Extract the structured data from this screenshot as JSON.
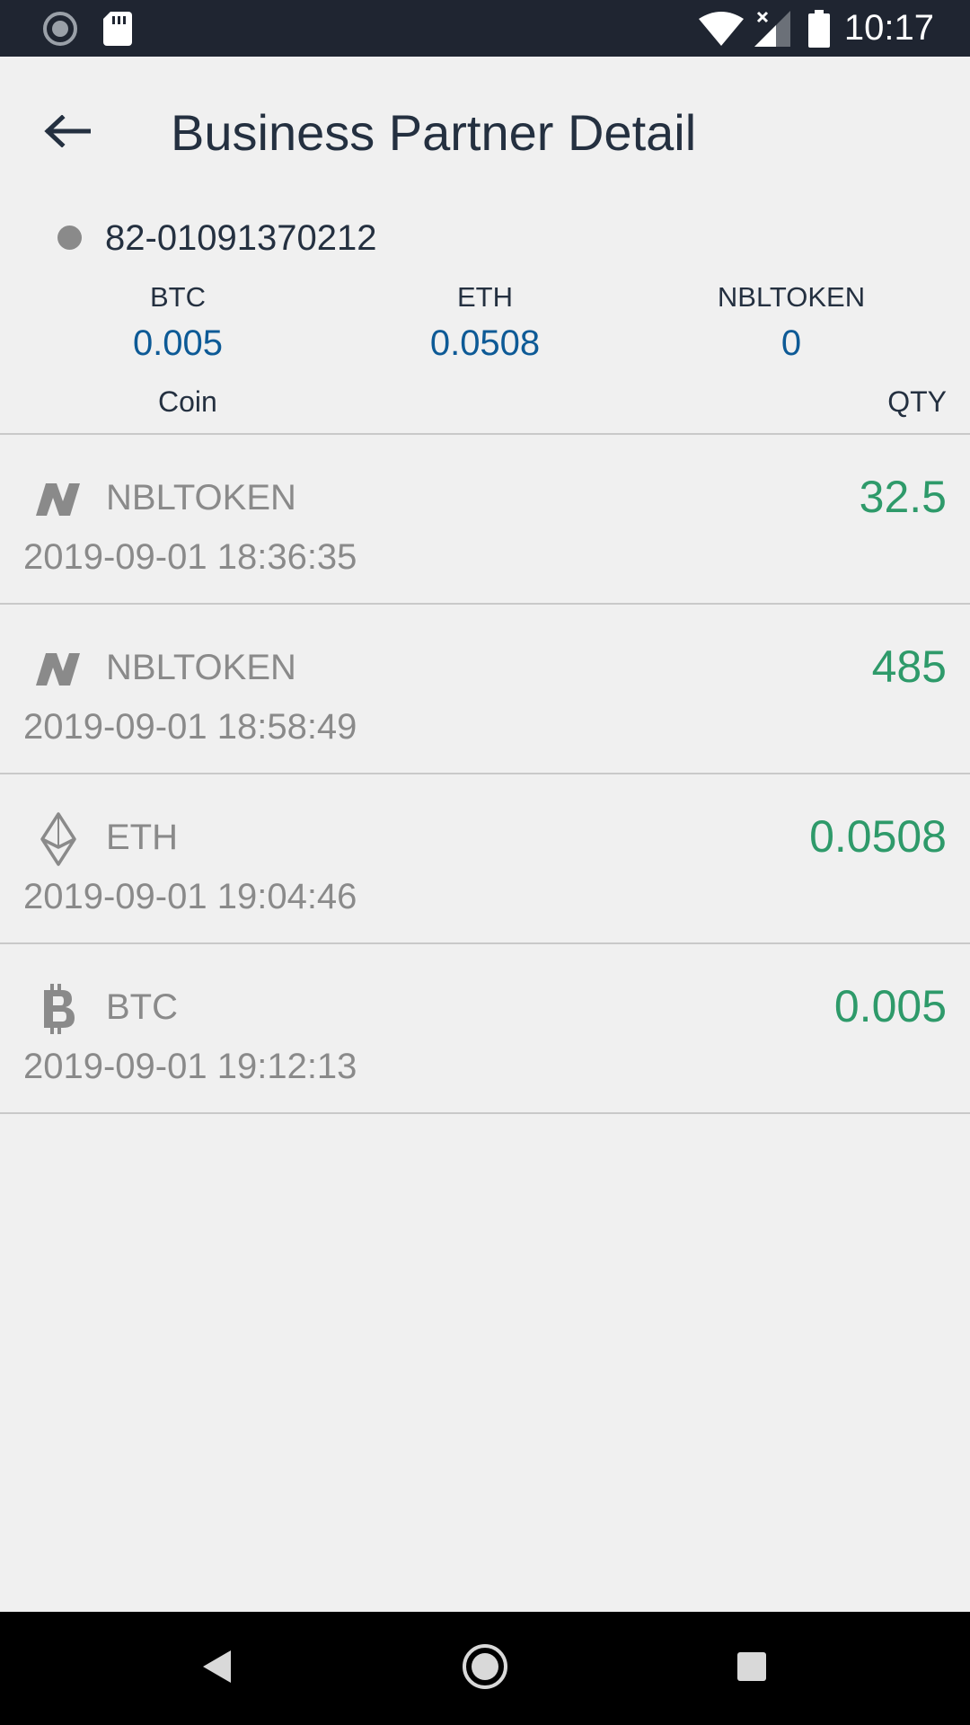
{
  "status_bar": {
    "time": "10:17"
  },
  "header": {
    "title": "Business Partner Detail"
  },
  "partner": {
    "id": "82-01091370212"
  },
  "balances": [
    {
      "coin": "BTC",
      "value": "0.005"
    },
    {
      "coin": "ETH",
      "value": "0.0508"
    },
    {
      "coin": "NBLTOKEN",
      "value": "0"
    }
  ],
  "list_header": {
    "coin": "Coin",
    "qty": "QTY"
  },
  "transactions": [
    {
      "icon": "nbltoken-icon",
      "coin": "NBLTOKEN",
      "time": "2019-09-01 18:36:35",
      "qty": "32.5"
    },
    {
      "icon": "nbltoken-icon",
      "coin": "NBLTOKEN",
      "time": "2019-09-01 18:58:49",
      "qty": "485"
    },
    {
      "icon": "eth-icon",
      "coin": "ETH",
      "time": "2019-09-01 19:04:46",
      "qty": "0.0508"
    },
    {
      "icon": "btc-icon",
      "coin": "BTC",
      "time": "2019-09-01 19:12:13",
      "qty": "0.005"
    }
  ],
  "colors": {
    "status_bar": "#1f2531",
    "title_text": "#243040",
    "balance_value": "#0d5a96",
    "qty_value": "#2e9a6a",
    "muted_text": "#8a8a8a",
    "background": "#f0f0f0"
  }
}
